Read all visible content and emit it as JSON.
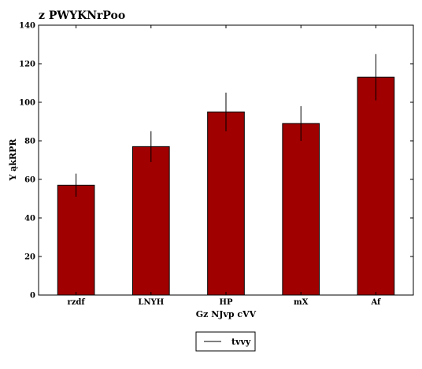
{
  "chart_data": {
    "type": "bar",
    "title": "z PWYKNrPoo",
    "xlabel": "Gz NJvp cVV",
    "ylabel": "Y ąkRPR",
    "categories": [
      "rzdf",
      "LNYH",
      "HP",
      "mX",
      "Af"
    ],
    "series": [
      {
        "name": "tvvy",
        "values": [
          57,
          77,
          95,
          89,
          113
        ],
        "errors": [
          6,
          8,
          10,
          9,
          12
        ],
        "color": "#a00000"
      }
    ],
    "ylim": [
      0,
      140
    ],
    "yticks": [
      0,
      20,
      40,
      60,
      80,
      100,
      120,
      140
    ],
    "grid": false,
    "legend": "bottom-center"
  }
}
